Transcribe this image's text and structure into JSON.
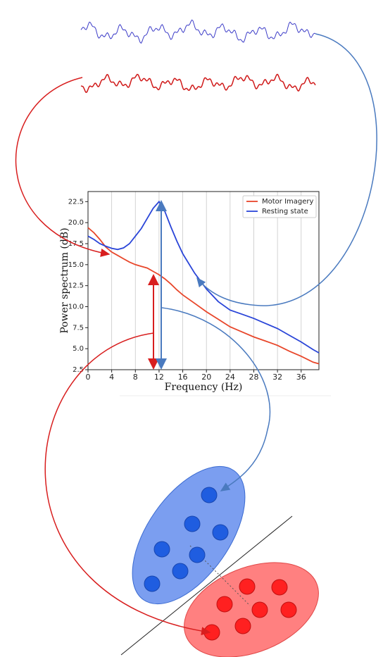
{
  "chart_data": {
    "type": "line",
    "xlabel": "Frequency (Hz)",
    "ylabel": "Power spectrum (dB)",
    "x": [
      0,
      1,
      2,
      3,
      4,
      5,
      6,
      7,
      8,
      9,
      10,
      11,
      12,
      13,
      14,
      15,
      16,
      18,
      20,
      22,
      24,
      26,
      28,
      30,
      32,
      34,
      36,
      38,
      39
    ],
    "series": [
      {
        "name": "Motor Imagery",
        "color": "#e8462a",
        "values": [
          19.4,
          18.8,
          18.0,
          17.1,
          16.5,
          16.1,
          15.7,
          15.3,
          15.0,
          14.8,
          14.6,
          14.2,
          13.8,
          13.3,
          12.7,
          12.0,
          11.4,
          10.4,
          9.4,
          8.5,
          7.6,
          7.0,
          6.4,
          5.9,
          5.4,
          4.7,
          4.1,
          3.4,
          3.2
        ]
      },
      {
        "name": "Resting state",
        "color": "#2a45d8",
        "values": [
          18.4,
          18.0,
          17.5,
          17.2,
          16.95,
          16.8,
          17.0,
          17.5,
          18.4,
          19.3,
          20.5,
          21.7,
          22.5,
          21.3,
          19.5,
          17.8,
          16.3,
          14.0,
          12.1,
          10.6,
          9.6,
          9.1,
          8.6,
          8.0,
          7.4,
          6.6,
          5.8,
          4.9,
          4.5
        ]
      }
    ],
    "xlim": [
      0,
      39
    ],
    "ylim": [
      2.5,
      23.7
    ],
    "xticks": [
      0,
      4,
      8,
      12,
      16,
      20,
      24,
      28,
      32,
      36
    ],
    "yticks": [
      2.5,
      {
        "value": 5,
        "label": "5.0"
      },
      7.5,
      {
        "value": 10,
        "label": "10.0"
      },
      12.5,
      {
        "value": 15,
        "label": "15.0"
      },
      17.5,
      {
        "value": 20,
        "label": "20.0"
      },
      22.5
    ],
    "grid": "x",
    "legend": "upper right"
  }
}
